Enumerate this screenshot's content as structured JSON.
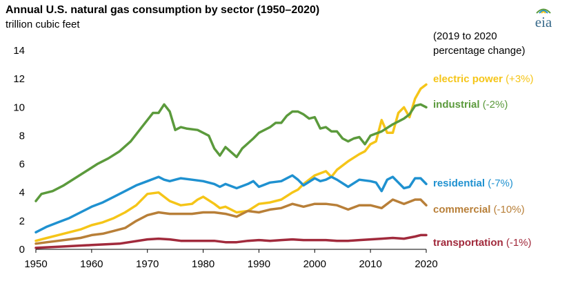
{
  "chart_data": {
    "type": "line",
    "title": "Annual U.S. natural gas consumption by sector (1950–2020)",
    "subtitle": "trillion cubic feet",
    "note_lines": [
      "(2019 to 2020",
      "percentage change)"
    ],
    "logo_text": "eia",
    "xlim": [
      1950,
      2020
    ],
    "ylim": [
      0,
      14
    ],
    "x_ticks": [
      1950,
      1960,
      1970,
      1980,
      1990,
      2000,
      2010,
      2020
    ],
    "y_ticks": [
      0,
      2,
      4,
      6,
      8,
      10,
      12,
      14
    ],
    "grid": false,
    "series": [
      {
        "name": "electric power",
        "change": "(+3%)",
        "color": "#f5c518",
        "x": [
          1950,
          1952,
          1954,
          1956,
          1958,
          1960,
          1962,
          1964,
          1966,
          1968,
          1970,
          1972,
          1973,
          1974,
          1976,
          1978,
          1979,
          1980,
          1982,
          1983,
          1984,
          1986,
          1988,
          1990,
          1992,
          1994,
          1996,
          1997,
          1998,
          2000,
          2002,
          2003,
          2004,
          2006,
          2008,
          2009,
          2010,
          2011,
          2012,
          2013,
          2014,
          2015,
          2016,
          2017,
          2018,
          2019,
          2020
        ],
        "values": [
          0.6,
          0.8,
          1.0,
          1.2,
          1.4,
          1.7,
          1.9,
          2.2,
          2.6,
          3.1,
          3.9,
          4.0,
          3.7,
          3.4,
          3.1,
          3.2,
          3.5,
          3.7,
          3.2,
          2.9,
          3.0,
          2.6,
          2.7,
          3.2,
          3.3,
          3.5,
          4.0,
          4.2,
          4.6,
          5.2,
          5.5,
          5.1,
          5.6,
          6.2,
          6.7,
          6.9,
          7.4,
          7.6,
          9.1,
          8.2,
          8.2,
          9.6,
          10.0,
          9.3,
          10.6,
          11.3,
          11.6
        ]
      },
      {
        "name": "industrial",
        "change": "(-2%)",
        "color": "#5b9a3c",
        "x": [
          1950,
          1951,
          1953,
          1955,
          1957,
          1959,
          1961,
          1963,
          1965,
          1967,
          1969,
          1970,
          1971,
          1972,
          1973,
          1974,
          1975,
          1976,
          1977,
          1979,
          1980,
          1981,
          1982,
          1983,
          1984,
          1986,
          1987,
          1989,
          1990,
          1992,
          1993,
          1994,
          1995,
          1996,
          1997,
          1998,
          1999,
          2000,
          2001,
          2002,
          2003,
          2004,
          2005,
          2006,
          2007,
          2008,
          2009,
          2010,
          2012,
          2014,
          2015,
          2016,
          2017,
          2018,
          2019,
          2020
        ],
        "values": [
          3.4,
          3.9,
          4.1,
          4.5,
          5.0,
          5.5,
          6.0,
          6.4,
          6.9,
          7.6,
          8.6,
          9.1,
          9.6,
          9.6,
          10.2,
          9.7,
          8.4,
          8.6,
          8.5,
          8.4,
          8.2,
          8.0,
          7.1,
          6.6,
          7.2,
          6.5,
          7.1,
          7.8,
          8.2,
          8.6,
          8.9,
          8.9,
          9.4,
          9.7,
          9.7,
          9.5,
          9.2,
          9.3,
          8.5,
          8.6,
          8.3,
          8.3,
          7.8,
          7.6,
          7.8,
          7.9,
          7.4,
          8.0,
          8.3,
          8.8,
          9.0,
          9.2,
          9.5,
          10.1,
          10.2,
          10.0
        ]
      },
      {
        "name": "residential",
        "change": "(-7%)",
        "color": "#1f91d0",
        "x": [
          1950,
          1952,
          1954,
          1956,
          1958,
          1960,
          1962,
          1964,
          1966,
          1968,
          1970,
          1972,
          1973,
          1974,
          1976,
          1978,
          1980,
          1982,
          1983,
          1984,
          1986,
          1988,
          1989,
          1990,
          1992,
          1994,
          1996,
          1997,
          1998,
          2000,
          2001,
          2002,
          2003,
          2004,
          2006,
          2008,
          2010,
          2011,
          2012,
          2013,
          2014,
          2015,
          2016,
          2017,
          2018,
          2019,
          2020
        ],
        "values": [
          1.2,
          1.6,
          1.9,
          2.2,
          2.6,
          3.0,
          3.3,
          3.7,
          4.1,
          4.5,
          4.8,
          5.1,
          4.9,
          4.8,
          5.0,
          4.9,
          4.8,
          4.6,
          4.4,
          4.6,
          4.3,
          4.6,
          4.8,
          4.4,
          4.7,
          4.8,
          5.2,
          4.9,
          4.5,
          5.0,
          4.8,
          4.9,
          5.1,
          4.9,
          4.4,
          4.9,
          4.8,
          4.7,
          4.1,
          4.9,
          5.1,
          4.7,
          4.3,
          4.4,
          5.0,
          5.0,
          4.6
        ]
      },
      {
        "name": "commercial",
        "change": "(-10%)",
        "color": "#b87f38",
        "x": [
          1950,
          1952,
          1954,
          1956,
          1958,
          1960,
          1962,
          1964,
          1966,
          1968,
          1970,
          1972,
          1974,
          1976,
          1978,
          1980,
          1982,
          1984,
          1986,
          1988,
          1990,
          1992,
          1994,
          1996,
          1998,
          2000,
          2002,
          2004,
          2006,
          2008,
          2010,
          2012,
          2014,
          2016,
          2018,
          2019,
          2020
        ],
        "values": [
          0.4,
          0.5,
          0.6,
          0.7,
          0.8,
          1.0,
          1.1,
          1.3,
          1.5,
          2.0,
          2.4,
          2.6,
          2.5,
          2.5,
          2.5,
          2.6,
          2.6,
          2.5,
          2.3,
          2.7,
          2.6,
          2.8,
          2.9,
          3.2,
          3.0,
          3.2,
          3.2,
          3.1,
          2.8,
          3.1,
          3.1,
          2.9,
          3.5,
          3.2,
          3.5,
          3.5,
          3.1
        ]
      },
      {
        "name": "transportation",
        "change": "(-1%)",
        "color": "#a12a3c",
        "x": [
          1950,
          1955,
          1960,
          1965,
          1970,
          1972,
          1974,
          1976,
          1978,
          1980,
          1982,
          1984,
          1986,
          1988,
          1990,
          1992,
          1994,
          1996,
          1998,
          2000,
          2002,
          2004,
          2006,
          2008,
          2010,
          2012,
          2014,
          2016,
          2018,
          2019,
          2020
        ],
        "values": [
          0.1,
          0.2,
          0.3,
          0.4,
          0.7,
          0.75,
          0.7,
          0.6,
          0.6,
          0.6,
          0.6,
          0.5,
          0.5,
          0.6,
          0.65,
          0.6,
          0.65,
          0.7,
          0.65,
          0.65,
          0.65,
          0.6,
          0.6,
          0.65,
          0.7,
          0.75,
          0.8,
          0.75,
          0.9,
          1.0,
          1.0
        ]
      }
    ]
  }
}
